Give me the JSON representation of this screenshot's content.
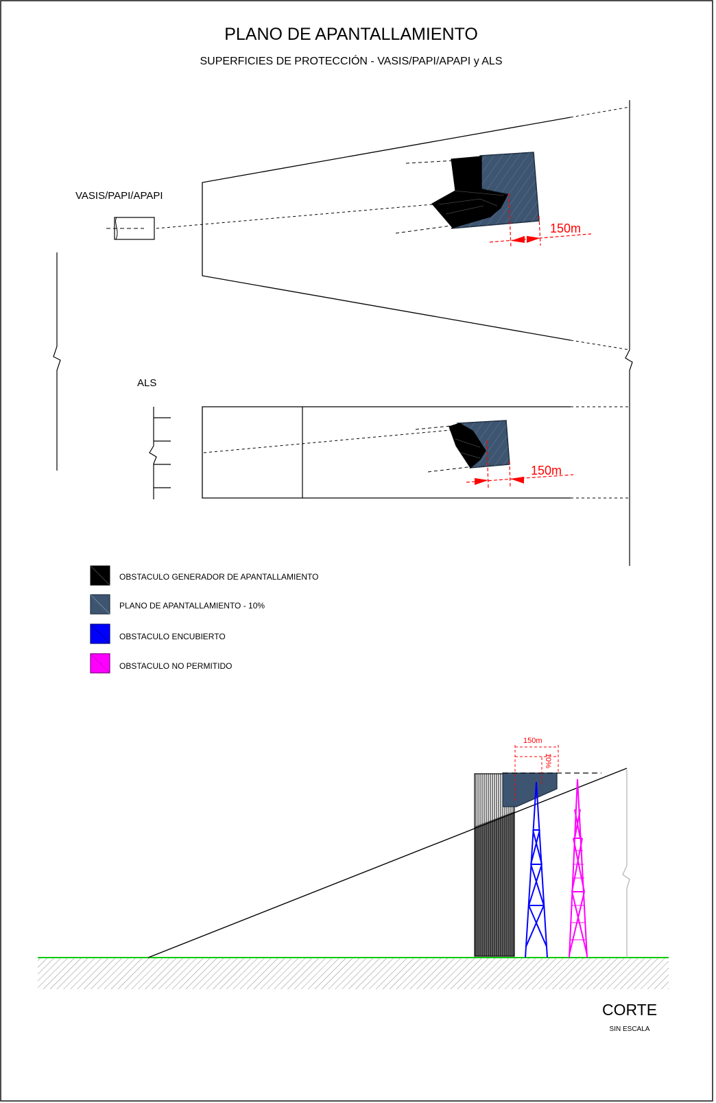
{
  "title": "PLANO DE APANTALLAMIENTO",
  "subtitle": "SUPERFICIES DE PROTECCIÓN - VASIS/PAPI/APAPI y ALS",
  "plan_vasis": {
    "label": "VASIS/PAPI/APAPI",
    "distance_label": "150m"
  },
  "plan_als": {
    "label": "ALS",
    "distance_label": "150m"
  },
  "legend": [
    {
      "label": "OBSTACULO GENERADOR DE APANTALLAMIENTO",
      "color": "#000000"
    },
    {
      "label": "PLANO DE APANTALLAMIENTO - 10%",
      "color": "#3d5570"
    },
    {
      "label": "OBSTACULO ENCUBIERTO",
      "color": "#0000ff"
    },
    {
      "label": "OBSTACULO NO PERMITIDO",
      "color": "#ff00ff"
    }
  ],
  "section": {
    "distance_label": "150m",
    "slope_label": "10%",
    "title": "CORTE",
    "scale_note": "SIN ESCALA"
  },
  "colors": {
    "dimension": "#ff0000",
    "ground": "#00cc00",
    "shield": "#3d5570"
  }
}
